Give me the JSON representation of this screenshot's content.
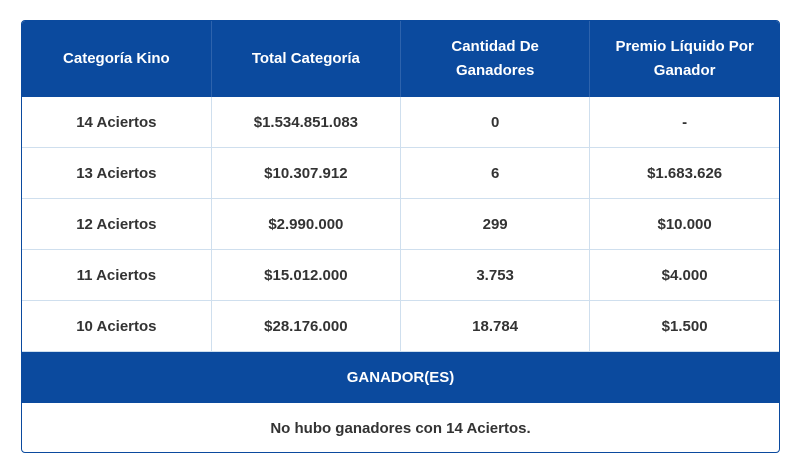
{
  "table": {
    "columns": [
      "Categoría Kino",
      "Total Categoría",
      "Cantidad De Ganadores",
      "Premio Líquido Por Ganador"
    ],
    "rows": [
      [
        "14 Aciertos",
        "$1.534.851.083",
        "0",
        "-"
      ],
      [
        "13 Aciertos",
        "$10.307.912",
        "6",
        "$1.683.626"
      ],
      [
        "12 Aciertos",
        "$2.990.000",
        "299",
        "$10.000"
      ],
      [
        "11 Aciertos",
        "$15.012.000",
        "3.753",
        "$4.000"
      ],
      [
        "10 Aciertos",
        "$28.176.000",
        "18.784",
        "$1.500"
      ]
    ]
  },
  "winners": {
    "title": "GANADOR(ES)",
    "note": "No hubo ganadores con 14 Aciertos."
  }
}
